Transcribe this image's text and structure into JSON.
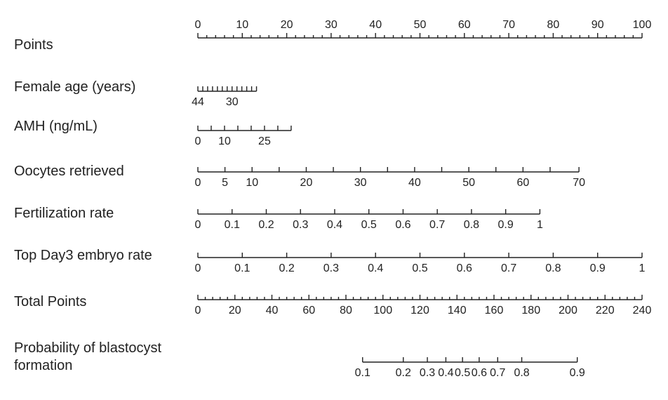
{
  "chart_data": {
    "type": "nomogram",
    "rows": [
      {
        "label": "Points",
        "kind": "points",
        "labels_above": true,
        "ticks": [
          {
            "value": 0,
            "points": 0,
            "label": "0"
          },
          {
            "value": 10,
            "points": 10,
            "label": "10"
          },
          {
            "value": 20,
            "points": 20,
            "label": "20"
          },
          {
            "value": 30,
            "points": 30,
            "label": "30"
          },
          {
            "value": 40,
            "points": 40,
            "label": "40"
          },
          {
            "value": 50,
            "points": 50,
            "label": "50"
          },
          {
            "value": 60,
            "points": 60,
            "label": "60"
          },
          {
            "value": 70,
            "points": 70,
            "label": "70"
          },
          {
            "value": 80,
            "points": 80,
            "label": "80"
          },
          {
            "value": 90,
            "points": 90,
            "label": "90"
          },
          {
            "value": 100,
            "points": 100,
            "label": "100"
          }
        ],
        "minor_step_points": 2
      },
      {
        "label": "Female age (years)",
        "kind": "variable",
        "ticks": [
          {
            "value": 44,
            "points": 0,
            "label": "44"
          },
          {
            "value": 42,
            "points": 1.1,
            "label": ""
          },
          {
            "value": 40,
            "points": 2.2,
            "label": ""
          },
          {
            "value": 38,
            "points": 3.3,
            "label": ""
          },
          {
            "value": 36,
            "points": 4.4,
            "label": ""
          },
          {
            "value": 34,
            "points": 5.5,
            "label": ""
          },
          {
            "value": 32,
            "points": 6.6,
            "label": ""
          },
          {
            "value": 30,
            "points": 7.7,
            "label": "30"
          },
          {
            "value": 28,
            "points": 8.8,
            "label": ""
          },
          {
            "value": 26,
            "points": 9.9,
            "label": ""
          },
          {
            "value": 24,
            "points": 11.0,
            "label": ""
          },
          {
            "value": 22,
            "points": 12.1,
            "label": ""
          },
          {
            "value": 20,
            "points": 13.2,
            "label": ""
          }
        ]
      },
      {
        "label": "AMH (ng/mL)",
        "kind": "variable",
        "ticks": [
          {
            "value": 0,
            "points": 0,
            "label": "0"
          },
          {
            "value": 5,
            "points": 3.0,
            "label": ""
          },
          {
            "value": 10,
            "points": 6.0,
            "label": "10"
          },
          {
            "value": 15,
            "points": 9.0,
            "label": ""
          },
          {
            "value": 20,
            "points": 12.0,
            "label": ""
          },
          {
            "value": 25,
            "points": 15.0,
            "label": "25"
          },
          {
            "value": 30,
            "points": 18.0,
            "label": ""
          },
          {
            "value": 35,
            "points": 21.0,
            "label": ""
          }
        ]
      },
      {
        "label": "Oocytes retrieved",
        "kind": "variable",
        "ticks": [
          {
            "value": 0,
            "points": 0,
            "label": "0"
          },
          {
            "value": 5,
            "points": 6.1,
            "label": "5"
          },
          {
            "value": 10,
            "points": 12.2,
            "label": "10"
          },
          {
            "value": 15,
            "points": 18.3,
            "label": ""
          },
          {
            "value": 20,
            "points": 24.4,
            "label": "20"
          },
          {
            "value": 25,
            "points": 30.5,
            "label": ""
          },
          {
            "value": 30,
            "points": 36.6,
            "label": "30"
          },
          {
            "value": 35,
            "points": 42.7,
            "label": ""
          },
          {
            "value": 40,
            "points": 48.8,
            "label": "40"
          },
          {
            "value": 45,
            "points": 54.9,
            "label": ""
          },
          {
            "value": 50,
            "points": 61.0,
            "label": "50"
          },
          {
            "value": 55,
            "points": 67.1,
            "label": ""
          },
          {
            "value": 60,
            "points": 73.2,
            "label": "60"
          },
          {
            "value": 65,
            "points": 79.3,
            "label": ""
          },
          {
            "value": 70,
            "points": 85.8,
            "label": "70"
          }
        ]
      },
      {
        "label": "Fertilization rate",
        "kind": "variable",
        "ticks": [
          {
            "value": 0,
            "points": 0,
            "label": "0"
          },
          {
            "value": 0.1,
            "points": 7.7,
            "label": "0.1"
          },
          {
            "value": 0.2,
            "points": 15.4,
            "label": "0.2"
          },
          {
            "value": 0.3,
            "points": 23.1,
            "label": "0.3"
          },
          {
            "value": 0.4,
            "points": 30.8,
            "label": "0.4"
          },
          {
            "value": 0.5,
            "points": 38.5,
            "label": "0.5"
          },
          {
            "value": 0.6,
            "points": 46.2,
            "label": "0.6"
          },
          {
            "value": 0.7,
            "points": 53.9,
            "label": "0.7"
          },
          {
            "value": 0.8,
            "points": 61.6,
            "label": "0.8"
          },
          {
            "value": 0.9,
            "points": 69.3,
            "label": "0.9"
          },
          {
            "value": 1,
            "points": 77.0,
            "label": "1"
          }
        ]
      },
      {
        "label": "Top Day3 embryo rate",
        "kind": "variable",
        "ticks": [
          {
            "value": 0,
            "points": 0,
            "label": "0"
          },
          {
            "value": 0.1,
            "points": 10,
            "label": "0.1"
          },
          {
            "value": 0.2,
            "points": 20,
            "label": "0.2"
          },
          {
            "value": 0.3,
            "points": 30,
            "label": "0.3"
          },
          {
            "value": 0.4,
            "points": 40,
            "label": "0.4"
          },
          {
            "value": 0.5,
            "points": 50,
            "label": "0.5"
          },
          {
            "value": 0.6,
            "points": 60,
            "label": "0.6"
          },
          {
            "value": 0.7,
            "points": 70,
            "label": "0.7"
          },
          {
            "value": 0.8,
            "points": 80,
            "label": "0.8"
          },
          {
            "value": 0.9,
            "points": 90,
            "label": "0.9"
          },
          {
            "value": 1,
            "points": 100,
            "label": "1"
          }
        ]
      },
      {
        "label": "Total Points",
        "kind": "total",
        "total_range": [
          0,
          240
        ],
        "ticks": [
          {
            "value": 0,
            "label": "0"
          },
          {
            "value": 20,
            "label": "20"
          },
          {
            "value": 40,
            "label": "40"
          },
          {
            "value": 60,
            "label": "60"
          },
          {
            "value": 80,
            "label": "80"
          },
          {
            "value": 100,
            "label": "100"
          },
          {
            "value": 120,
            "label": "120"
          },
          {
            "value": 140,
            "label": "140"
          },
          {
            "value": 160,
            "label": "160"
          },
          {
            "value": 180,
            "label": "180"
          },
          {
            "value": 200,
            "label": "200"
          },
          {
            "value": 220,
            "label": "220"
          },
          {
            "value": 240,
            "label": "240"
          }
        ],
        "minor_step": 4
      },
      {
        "label": "Probability of blastocyst formation",
        "label_lines": [
          "Probability of blastocyst",
          "formation"
        ],
        "kind": "probability",
        "total_range": [
          0,
          240
        ],
        "ticks": [
          {
            "value": 0.1,
            "total_points": 89,
            "label": "0.1"
          },
          {
            "value": 0.2,
            "total_points": 111,
            "label": "0.2"
          },
          {
            "value": 0.3,
            "total_points": 124,
            "label": "0.3"
          },
          {
            "value": 0.4,
            "total_points": 134,
            "label": "0.4"
          },
          {
            "value": 0.5,
            "total_points": 143,
            "label": "0.5"
          },
          {
            "value": 0.6,
            "total_points": 152,
            "label": "0.6"
          },
          {
            "value": 0.7,
            "total_points": 162,
            "label": "0.7"
          },
          {
            "value": 0.8,
            "total_points": 175,
            "label": "0.8"
          },
          {
            "value": 0.9,
            "total_points": 205,
            "label": "0.9"
          }
        ]
      }
    ]
  }
}
